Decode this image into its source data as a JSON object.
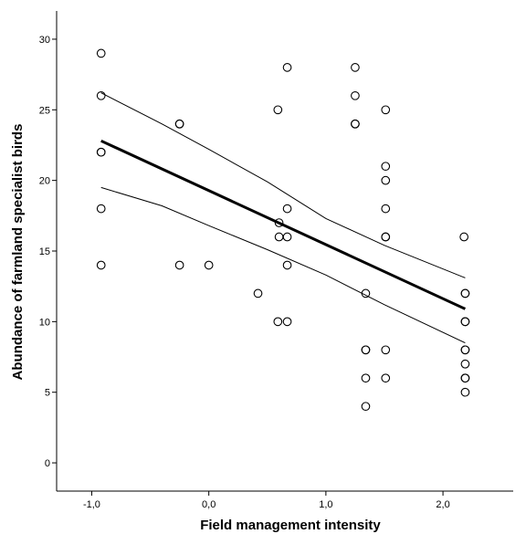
{
  "chart_data": {
    "type": "scatter",
    "xlabel": "Field management intensity",
    "ylabel": "Abundance of farmland specialist birds",
    "xlim": [
      -1.3,
      2.6
    ],
    "ylim": [
      -2,
      32
    ],
    "x_ticks": [
      -1.0,
      0.0,
      1.0,
      2.0
    ],
    "x_tick_labels": [
      "-1,0",
      "0,0",
      "1,0",
      "2,0"
    ],
    "y_ticks": [
      0,
      5,
      10,
      15,
      20,
      25,
      30
    ],
    "y_tick_labels": [
      "0",
      "5",
      "10",
      "15",
      "20",
      "25",
      "30"
    ],
    "grid": false,
    "points": [
      {
        "x": -0.92,
        "y": 29
      },
      {
        "x": -0.92,
        "y": 26
      },
      {
        "x": -0.92,
        "y": 22
      },
      {
        "x": -0.92,
        "y": 22
      },
      {
        "x": -0.92,
        "y": 18
      },
      {
        "x": -0.92,
        "y": 14
      },
      {
        "x": -0.25,
        "y": 24
      },
      {
        "x": -0.25,
        "y": 24
      },
      {
        "x": -0.25,
        "y": 14
      },
      {
        "x": 0.0,
        "y": 14
      },
      {
        "x": 0.42,
        "y": 12
      },
      {
        "x": 0.59,
        "y": 25
      },
      {
        "x": 0.6,
        "y": 17
      },
      {
        "x": 0.6,
        "y": 16
      },
      {
        "x": 0.59,
        "y": 10
      },
      {
        "x": 0.67,
        "y": 28
      },
      {
        "x": 0.67,
        "y": 18
      },
      {
        "x": 0.67,
        "y": 16
      },
      {
        "x": 0.67,
        "y": 14
      },
      {
        "x": 0.67,
        "y": 10
      },
      {
        "x": 1.25,
        "y": 28
      },
      {
        "x": 1.25,
        "y": 26
      },
      {
        "x": 1.25,
        "y": 24
      },
      {
        "x": 1.25,
        "y": 24
      },
      {
        "x": 1.34,
        "y": 12
      },
      {
        "x": 1.34,
        "y": 8
      },
      {
        "x": 1.34,
        "y": 8
      },
      {
        "x": 1.34,
        "y": 6
      },
      {
        "x": 1.34,
        "y": 4
      },
      {
        "x": 1.51,
        "y": 25
      },
      {
        "x": 1.51,
        "y": 21
      },
      {
        "x": 1.51,
        "y": 20
      },
      {
        "x": 1.51,
        "y": 18
      },
      {
        "x": 1.51,
        "y": 16
      },
      {
        "x": 1.51,
        "y": 16
      },
      {
        "x": 1.51,
        "y": 8
      },
      {
        "x": 1.51,
        "y": 6
      },
      {
        "x": 2.18,
        "y": 16
      },
      {
        "x": 2.19,
        "y": 12
      },
      {
        "x": 2.19,
        "y": 12
      },
      {
        "x": 2.19,
        "y": 10
      },
      {
        "x": 2.19,
        "y": 10
      },
      {
        "x": 2.19,
        "y": 8
      },
      {
        "x": 2.19,
        "y": 8
      },
      {
        "x": 2.19,
        "y": 7
      },
      {
        "x": 2.19,
        "y": 6
      },
      {
        "x": 2.19,
        "y": 6
      },
      {
        "x": 2.19,
        "y": 5
      }
    ],
    "fit_line": {
      "x": [
        -0.92,
        2.19
      ],
      "y": [
        22.8,
        10.9
      ]
    },
    "ci_upper": {
      "x": [
        -0.92,
        -0.4,
        0.0,
        0.5,
        1.0,
        1.5,
        2.19
      ],
      "y": [
        26.2,
        24.0,
        22.2,
        19.9,
        17.3,
        15.4,
        13.1
      ]
    },
    "ci_lower": {
      "x": [
        -0.92,
        -0.4,
        0.0,
        0.5,
        1.0,
        1.5,
        2.19
      ],
      "y": [
        19.5,
        18.2,
        16.8,
        15.1,
        13.3,
        11.2,
        8.5
      ]
    }
  }
}
